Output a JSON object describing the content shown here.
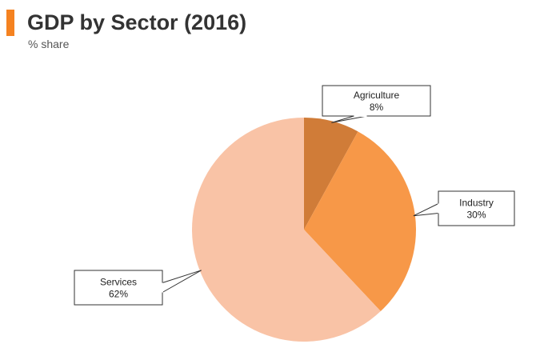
{
  "header": {
    "title": "GDP by Sector (2016)",
    "subtitle": "% share"
  },
  "colors": {
    "accent": "#f58220"
  },
  "chart_data": {
    "type": "pie",
    "title": "GDP by Sector (2016)",
    "subtitle": "% share",
    "unit": "%",
    "legend": "none",
    "slices": [
      {
        "label": "Agriculture",
        "value": 8,
        "value_label": "8%",
        "color": "#d07c38"
      },
      {
        "label": "Industry",
        "value": 30,
        "value_label": "30%",
        "color": "#f79848"
      },
      {
        "label": "Services",
        "value": 62,
        "value_label": "62%",
        "color": "#f9c3a6"
      }
    ]
  }
}
